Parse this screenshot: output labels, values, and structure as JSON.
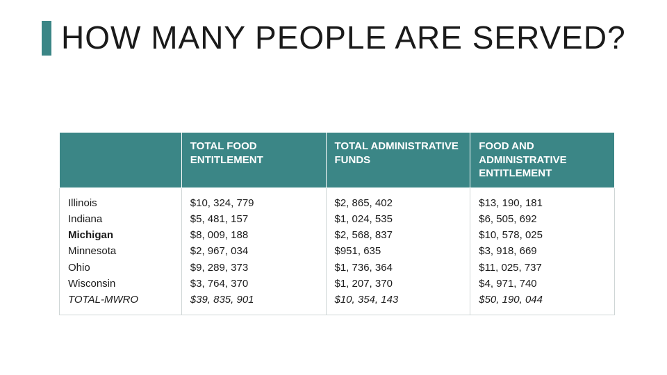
{
  "title": "HOW MANY PEOPLE ARE SERVED?",
  "accent_color": "#3b8686",
  "text_color": "#1a1a1a",
  "border_color": "#cfd6d6",
  "header_text_color": "#ffffff",
  "title_fontsize": 46,
  "cell_fontsize": 15,
  "columns": [
    "",
    "TOTAL FOOD ENTITLEMENT",
    "TOTAL ADMINISTRATIVE FUNDS",
    "FOOD AND ADMINISTRATIVE ENTITLEMENT"
  ],
  "rows": [
    {
      "label": "Illinois",
      "bold": false,
      "italic": false,
      "food": "$10, 324, 779",
      "admin": "$2, 865, 402",
      "total": "$13, 190, 181"
    },
    {
      "label": "Indiana",
      "bold": false,
      "italic": false,
      "food": "$5, 481, 157",
      "admin": "$1, 024, 535",
      "total": "$6, 505, 692"
    },
    {
      "label": "Michigan",
      "bold": true,
      "italic": false,
      "food": "$8, 009, 188",
      "admin": "$2, 568, 837",
      "total": "$10, 578, 025"
    },
    {
      "label": "Minnesota",
      "bold": false,
      "italic": false,
      "food": "$2, 967, 034",
      "admin": "$951, 635",
      "total": "$3, 918, 669"
    },
    {
      "label": "Ohio",
      "bold": false,
      "italic": false,
      "food": "$9, 289, 373",
      "admin": "$1, 736, 364",
      "total": "$11, 025, 737"
    },
    {
      "label": "Wisconsin",
      "bold": false,
      "italic": false,
      "food": "$3, 764, 370",
      "admin": "$1, 207, 370",
      "total": "$4, 971, 740"
    },
    {
      "label": "TOTAL-MWRO",
      "bold": false,
      "italic": true,
      "food": "$39, 835, 901",
      "admin": "$10, 354, 143",
      "total": "$50, 190, 044"
    }
  ]
}
